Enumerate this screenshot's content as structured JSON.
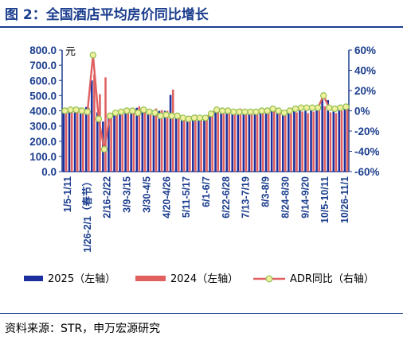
{
  "title": "图 2：全国酒店平均房价同比增长",
  "source": "资料来源：STR，申万宏源研究",
  "colors": {
    "y2025": "#1c2f9c",
    "y2024": "#e06060",
    "adr_line": "#e06060",
    "adr_marker_face": "#f0f0a0",
    "adr_marker_edge": "#92c050",
    "axis": "#1c3e8e"
  },
  "chart_data": {
    "type": "bar+line",
    "left_unit": "元",
    "left_axis": {
      "ylim": [
        0,
        800
      ],
      "ticks": [
        "0.0",
        "100.0",
        "200.0",
        "300.0",
        "400.0",
        "500.0",
        "600.0",
        "700.0",
        "800.0"
      ]
    },
    "right_axis": {
      "ylim": [
        -60,
        60
      ],
      "ticks": [
        "-60%",
        "-40%",
        "-20%",
        "0%",
        "20%",
        "40%",
        "60%"
      ]
    },
    "x_tick_labels": [
      "1/5-1/11",
      "1/26-2/1（春节）",
      "2/16-2/22",
      "3/9-3/15",
      "3/30-4/5",
      "4/20-4/26",
      "5/11-5/17",
      "6/1-6/7",
      "6/22-6/28",
      "7/13-7/19",
      "8/3-8/9",
      "8/24-8/30",
      "9/14-9/20",
      "10/5-10/11",
      "10/26-11/1"
    ],
    "legend": [
      "2025（左轴）",
      "2024（左轴）",
      "ADR同比（右轴）"
    ],
    "series": [
      {
        "name": "2025（左轴）",
        "axis": "left",
        "values": [
          410,
          405,
          400,
          420,
          425,
          600,
          390,
          330,
          375,
          395,
          405,
          400,
          410,
          420,
          400,
          395,
          405,
          400,
          400,
          505,
          370,
          365,
          360,
          370,
          355,
          355,
          390,
          395,
          400,
          395,
          390,
          410,
          395,
          395,
          405,
          405,
          400,
          410,
          410,
          395,
          390,
          400,
          405,
          400,
          405,
          410,
          505,
          470,
          395,
          410,
          420
        ]
      },
      {
        "name": "2024（左轴）",
        "axis": "left",
        "values": [
          400,
          395,
          395,
          410,
          420,
          640,
          510,
          620,
          380,
          390,
          400,
          395,
          405,
          430,
          420,
          410,
          415,
          405,
          400,
          540,
          375,
          370,
          365,
          375,
          360,
          360,
          385,
          390,
          400,
          400,
          400,
          415,
          400,
          400,
          410,
          410,
          405,
          405,
          415,
          405,
          390,
          390,
          395,
          385,
          395,
          400,
          430,
          390,
          385,
          400,
          410
        ]
      },
      {
        "name": "ADR同比（右轴）",
        "axis": "right",
        "values": [
          0,
          1,
          1,
          0,
          -1,
          55,
          -8,
          -38,
          -5,
          -2,
          -1,
          0,
          0,
          -2,
          1,
          -1,
          -2,
          -5,
          -4,
          -5,
          -5,
          -7,
          -8,
          -7,
          -7,
          -7,
          -3,
          1,
          0,
          0,
          -1,
          -1,
          -1,
          -1,
          -1,
          0,
          0,
          2,
          0,
          -2,
          0,
          2,
          3,
          3,
          3,
          3,
          15,
          3,
          2,
          3,
          4
        ]
      }
    ]
  }
}
